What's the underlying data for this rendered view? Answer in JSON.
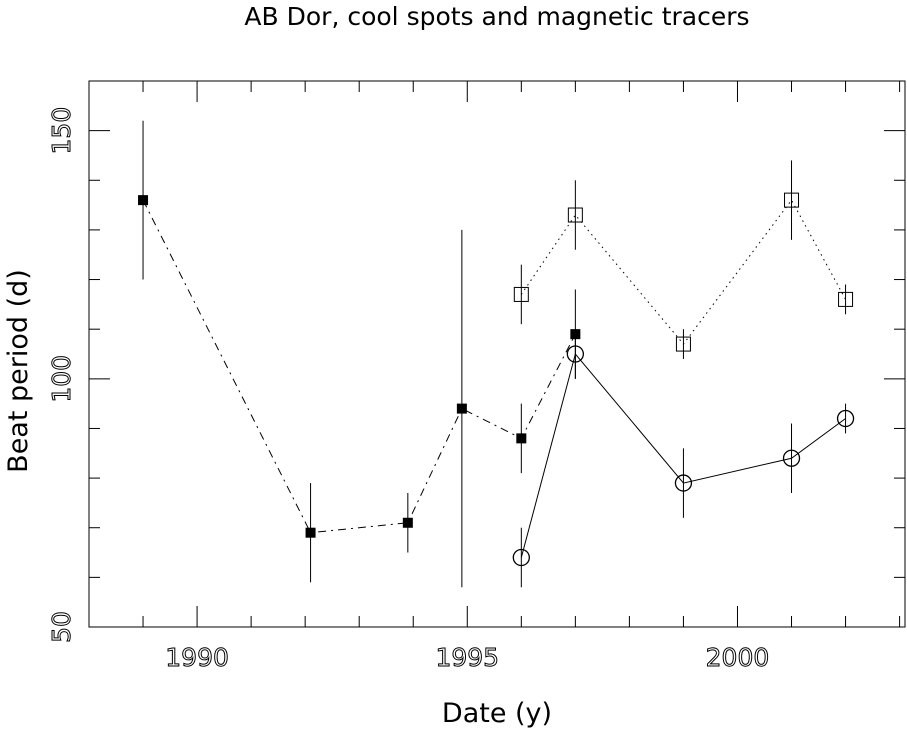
{
  "chart_data": {
    "type": "scatter",
    "title": "AB Dor, cool spots and magnetic tracers",
    "xlabel": "Date (y)",
    "ylabel": "Beat period (d)",
    "xlim": [
      1988.0,
      2003.1
    ],
    "ylim": [
      50,
      160
    ],
    "xticks": [
      1990,
      1995,
      2000
    ],
    "yticks": [
      50,
      100,
      150
    ],
    "x_minor_step": 1,
    "y_minor_step": 10,
    "grid": false,
    "legend": "none",
    "series": [
      {
        "marker": "filled-square",
        "line": "dash-dot",
        "points": [
          {
            "x": 1989.0,
            "y": 136,
            "err": 16
          },
          {
            "x": 1992.1,
            "y": 69,
            "err": 10
          },
          {
            "x": 1993.9,
            "y": 71,
            "err": 6
          },
          {
            "x": 1994.9,
            "y": 94,
            "err": 36
          },
          {
            "x": 1996.0,
            "y": 88,
            "err": 7
          },
          {
            "x": 1997.0,
            "y": 109,
            "err": 9
          }
        ]
      },
      {
        "marker": "open-square",
        "line": "dotted",
        "points": [
          {
            "x": 1996.0,
            "y": 117,
            "err": 6
          },
          {
            "x": 1997.0,
            "y": 133,
            "err": 7
          },
          {
            "x": 1999.0,
            "y": 107,
            "err": 3
          },
          {
            "x": 2001.0,
            "y": 136,
            "err": 8
          },
          {
            "x": 2002.0,
            "y": 116,
            "err": 3
          }
        ]
      },
      {
        "marker": "open-circle",
        "line": "solid",
        "points": [
          {
            "x": 1996.0,
            "y": 64,
            "err": 6
          },
          {
            "x": 1997.0,
            "y": 105,
            "err": 5
          },
          {
            "x": 1999.0,
            "y": 79,
            "err": 7
          },
          {
            "x": 2001.0,
            "y": 84,
            "err": 7
          },
          {
            "x": 2002.0,
            "y": 92,
            "err": 3
          }
        ]
      }
    ]
  }
}
